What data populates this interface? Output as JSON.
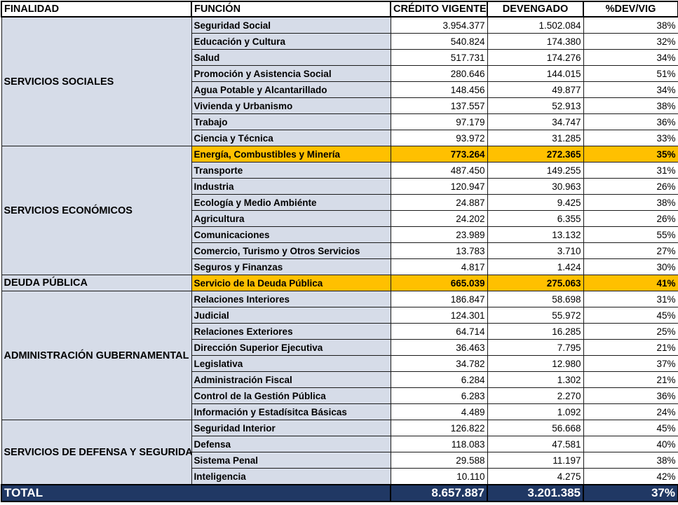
{
  "headers": {
    "finalidad": "FINALIDAD",
    "funcion": "FUNCIÓN",
    "credito": "CRÉDITO VIGENTE",
    "devengado": "DEVENGADO",
    "pct": "%DEV/VIG"
  },
  "groups": [
    {
      "name": "SERVICIOS SOCIALES",
      "rows": [
        {
          "funcion": "Seguridad Social",
          "credito": "3.954.377",
          "devengado": "1.502.084",
          "pct": "38%",
          "highlight": false
        },
        {
          "funcion": "Educación y Cultura",
          "credito": "540.824",
          "devengado": "174.380",
          "pct": "32%",
          "highlight": false
        },
        {
          "funcion": "Salud",
          "credito": "517.731",
          "devengado": "174.276",
          "pct": "34%",
          "highlight": false
        },
        {
          "funcion": "Promoción y Asistencia Social",
          "credito": "280.646",
          "devengado": "144.015",
          "pct": "51%",
          "highlight": false
        },
        {
          "funcion": "Agua Potable y Alcantarillado",
          "credito": "148.456",
          "devengado": "49.877",
          "pct": "34%",
          "highlight": false
        },
        {
          "funcion": "Vivienda y Urbanismo",
          "credito": "137.557",
          "devengado": "52.913",
          "pct": "38%",
          "highlight": false
        },
        {
          "funcion": "Trabajo",
          "credito": "97.179",
          "devengado": "34.747",
          "pct": "36%",
          "highlight": false
        },
        {
          "funcion": "Ciencia y Técnica",
          "credito": "93.972",
          "devengado": "31.285",
          "pct": "33%",
          "highlight": false
        }
      ]
    },
    {
      "name": "SERVICIOS ECONÓMICOS",
      "rows": [
        {
          "funcion": "Energía, Combustibles y Minería",
          "credito": "773.264",
          "devengado": "272.365",
          "pct": "35%",
          "highlight": true
        },
        {
          "funcion": "Transporte",
          "credito": "487.450",
          "devengado": "149.255",
          "pct": "31%",
          "highlight": false
        },
        {
          "funcion": "Industria",
          "credito": "120.947",
          "devengado": "30.963",
          "pct": "26%",
          "highlight": false
        },
        {
          "funcion": "Ecología y Medio Ambiénte",
          "credito": "24.887",
          "devengado": "9.425",
          "pct": "38%",
          "highlight": false
        },
        {
          "funcion": "Agricultura",
          "credito": "24.202",
          "devengado": "6.355",
          "pct": "26%",
          "highlight": false
        },
        {
          "funcion": "Comunicaciones",
          "credito": "23.989",
          "devengado": "13.132",
          "pct": "55%",
          "highlight": false
        },
        {
          "funcion": "Comercio, Turismo y Otros Servicios",
          "credito": "13.783",
          "devengado": "3.710",
          "pct": "27%",
          "highlight": false
        },
        {
          "funcion": "Seguros y Finanzas",
          "credito": "4.817",
          "devengado": "1.424",
          "pct": "30%",
          "highlight": false
        }
      ]
    },
    {
      "name": "DEUDA PÚBLICA",
      "rows": [
        {
          "funcion": "Servicio de la Deuda Pública",
          "credito": "665.039",
          "devengado": "275.063",
          "pct": "41%",
          "highlight": true
        }
      ]
    },
    {
      "name": "ADMINISTRACIÓN GUBERNAMENTAL",
      "rows": [
        {
          "funcion": "Relaciones Interiores",
          "credito": "186.847",
          "devengado": "58.698",
          "pct": "31%",
          "highlight": false
        },
        {
          "funcion": "Judicial",
          "credito": "124.301",
          "devengado": "55.972",
          "pct": "45%",
          "highlight": false
        },
        {
          "funcion": "Relaciones Exteriores",
          "credito": "64.714",
          "devengado": "16.285",
          "pct": "25%",
          "highlight": false
        },
        {
          "funcion": "Dirección Superior Ejecutiva",
          "credito": "36.463",
          "devengado": "7.795",
          "pct": "21%",
          "highlight": false
        },
        {
          "funcion": "Legislativa",
          "credito": "34.782",
          "devengado": "12.980",
          "pct": "37%",
          "highlight": false
        },
        {
          "funcion": "Administración Fiscal",
          "credito": "6.284",
          "devengado": "1.302",
          "pct": "21%",
          "highlight": false
        },
        {
          "funcion": "Control de la Gestión Pública",
          "credito": "6.283",
          "devengado": "2.270",
          "pct": "36%",
          "highlight": false
        },
        {
          "funcion": "Información y Estadísitca Básicas",
          "credito": "4.489",
          "devengado": "1.092",
          "pct": "24%",
          "highlight": false
        }
      ]
    },
    {
      "name": "SERVICIOS DE DEFENSA Y SEGURIDAD",
      "rows": [
        {
          "funcion": "Seguridad Interior",
          "credito": "126.822",
          "devengado": "56.668",
          "pct": "45%",
          "highlight": false
        },
        {
          "funcion": "Defensa",
          "credito": "118.083",
          "devengado": "47.581",
          "pct": "40%",
          "highlight": false
        },
        {
          "funcion": "Sistema Penal",
          "credito": "29.588",
          "devengado": "11.197",
          "pct": "38%",
          "highlight": false
        },
        {
          "funcion": "Inteligencia",
          "credito": "10.110",
          "devengado": "4.275",
          "pct": "42%",
          "highlight": false
        }
      ]
    }
  ],
  "total": {
    "label": "TOTAL",
    "credito": "8.657.887",
    "devengado": "3.201.385",
    "pct": "37%"
  },
  "colors": {
    "group_bg": "#d6dce8",
    "highlight": "#ffc000",
    "total_bg": "#203864"
  }
}
